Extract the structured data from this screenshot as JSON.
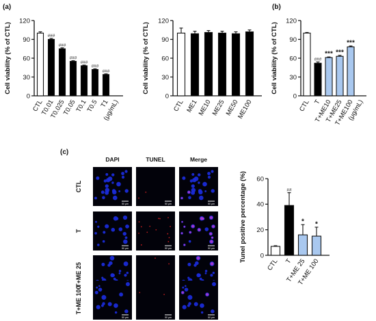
{
  "panel_labels": {
    "a": "(a)",
    "b": "(b)",
    "c": "(c)"
  },
  "micrograph": {
    "columns": [
      "DAPI",
      "TUNEL",
      "Merge"
    ],
    "rows": [
      "CTL",
      "T",
      "T+ME 25",
      "T+ME 100"
    ],
    "scalebar_label": "50 µm",
    "colors": {
      "nucleus": "#1a2bd8",
      "tunel": "#d02020",
      "merge": "#b03ad0",
      "background": "#02020a"
    }
  },
  "chart_data": [
    {
      "id": "a1",
      "type": "bar",
      "ylabel": "Cell viability (% of CTL)",
      "ylim": [
        0,
        120
      ],
      "yticks": [
        0,
        30,
        60,
        90,
        120
      ],
      "categories": [
        "CTL",
        "T0.01",
        "T0.025",
        "T0.05",
        "T0.1",
        "T0.5",
        "T1"
      ],
      "unit_label": "(μg/mL)",
      "values": [
        100,
        90,
        75,
        55,
        48,
        42,
        34
      ],
      "errors": [
        2,
        1.5,
        1.5,
        1,
        1,
        1,
        1
      ],
      "significance": [
        "",
        "###",
        "###",
        "###",
        "###",
        "###",
        "###"
      ],
      "fills": [
        "#ffffff",
        "#000000",
        "#000000",
        "#000000",
        "#000000",
        "#000000",
        "#000000"
      ]
    },
    {
      "id": "a2",
      "type": "bar",
      "ylabel": "Cell viability (% of CTL)",
      "ylim": [
        0,
        120
      ],
      "yticks": [
        0,
        30,
        60,
        90,
        120
      ],
      "categories": [
        "CTL",
        "ME1",
        "ME10",
        "ME25",
        "ME50",
        "ME100"
      ],
      "unit_label": "",
      "values": [
        100,
        99,
        101,
        100,
        99,
        102
      ],
      "errors": [
        8,
        4,
        3,
        3,
        3,
        3
      ],
      "significance": [
        "",
        "",
        "",
        "",
        "",
        ""
      ],
      "fills": [
        "#ffffff",
        "#000000",
        "#000000",
        "#000000",
        "#000000",
        "#000000"
      ]
    },
    {
      "id": "b",
      "type": "bar",
      "ylabel": "Cell viability (% of CTL)",
      "ylim": [
        0,
        120
      ],
      "yticks": [
        0,
        30,
        60,
        90,
        120
      ],
      "categories": [
        "CTL",
        "T",
        "T+ME10",
        "T+ME25",
        "T+ME100"
      ],
      "unit_label": "(μg/mL)",
      "values": [
        100,
        52,
        61,
        63,
        78
      ],
      "errors": [
        1,
        2,
        1,
        1.5,
        1.5
      ],
      "significance": [
        "",
        "###",
        "***",
        "***",
        "***"
      ],
      "fills": [
        "#ffffff",
        "#000000",
        "#a9c8ef",
        "#a9c8ef",
        "#a9c8ef"
      ]
    },
    {
      "id": "c",
      "type": "bar",
      "ylabel": "Tunel positive percentage (%)",
      "ylim": [
        0,
        60
      ],
      "yticks": [
        0,
        20,
        40,
        60
      ],
      "categories": [
        "CTL",
        "T",
        "T+ME 25",
        "T+ME 100"
      ],
      "unit_label": "",
      "values": [
        7,
        39,
        16,
        15
      ],
      "errors": [
        0.5,
        10,
        8,
        7
      ],
      "significance": [
        "",
        "##",
        "*",
        "*"
      ],
      "fills": [
        "#ffffff",
        "#000000",
        "#a9c8ef",
        "#a9c8ef"
      ]
    }
  ]
}
